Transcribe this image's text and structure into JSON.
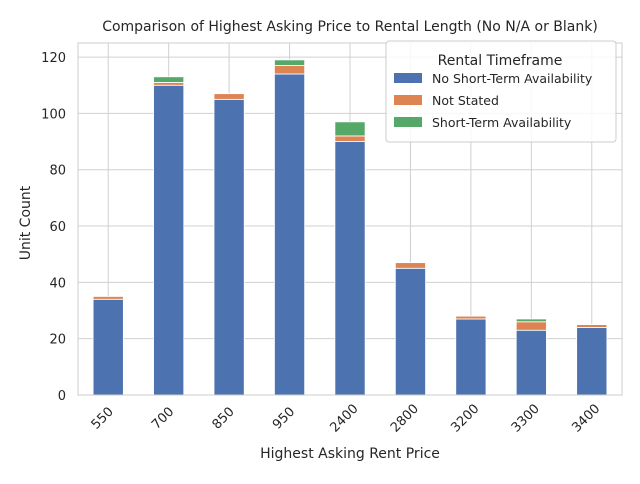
{
  "chart_data": {
    "type": "bar",
    "stacked": true,
    "title": "Comparison of Highest Asking Price to Rental Length (No N/A or Blank)",
    "xlabel": "Highest Asking Rent Price",
    "ylabel": "Unit Count",
    "categories": [
      "550",
      "700",
      "850",
      "950",
      "2400",
      "2800",
      "3200",
      "3300",
      "3400"
    ],
    "ylim": [
      0,
      125
    ],
    "yticks": [
      0,
      20,
      40,
      60,
      80,
      100,
      120
    ],
    "grid": true,
    "legend": {
      "title": "Rental Timeframe",
      "placement": "top-right"
    },
    "series": [
      {
        "name": "No Short-Term Availability",
        "color": "#4c72b0",
        "values": [
          34,
          110,
          105,
          114,
          90,
          45,
          27,
          23,
          24
        ]
      },
      {
        "name": "Not Stated",
        "color": "#dd8452",
        "values": [
          1,
          1,
          2,
          3,
          2,
          2,
          1,
          3,
          1
        ]
      },
      {
        "name": "Short-Term Availability",
        "color": "#55a868",
        "values": [
          0,
          2,
          0,
          2,
          5,
          0,
          0,
          1,
          0
        ]
      }
    ]
  }
}
